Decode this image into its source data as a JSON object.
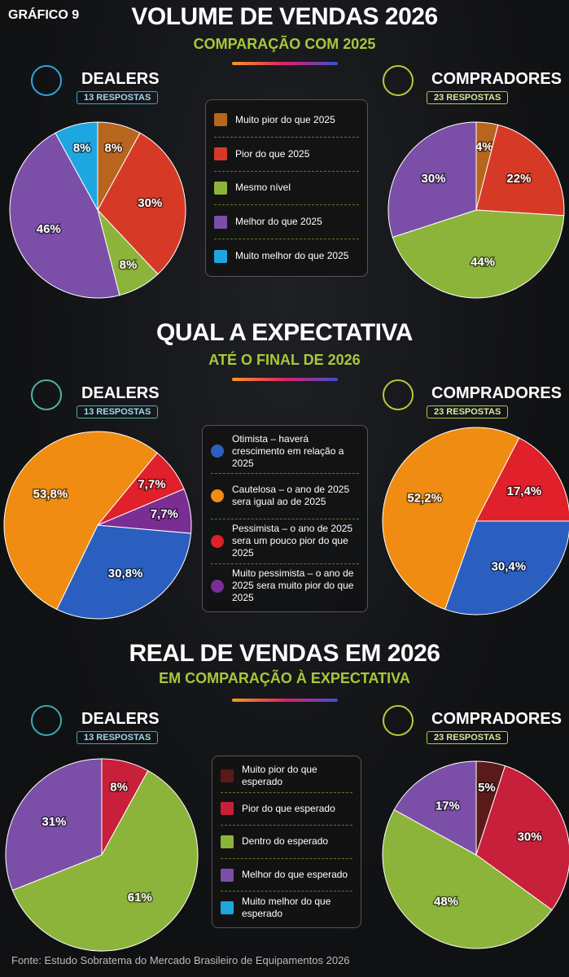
{
  "label": "GRÁFICO 9",
  "source": "Fonte: Estudo Sobratema do Mercado Brasileiro de Equipamentos 2026",
  "chart_data": [
    {
      "type": "pie",
      "title": "VOLUME DE VENDAS 2026",
      "subtitle": "COMPARAÇÃO COM 2025",
      "categories": [
        "Muito pior do que 2025",
        "Pior do que 2025",
        "Mesmo nível",
        "Melhor do que 2025",
        "Muito melhor do que 2025"
      ],
      "colors": [
        "#b8651e",
        "#d63a26",
        "#8cb43a",
        "#7b4fa8",
        "#1ea6e0"
      ],
      "series": [
        {
          "name": "DEALERS",
          "responses": "13 RESPOSTAS",
          "values": [
            8,
            30,
            8,
            46,
            8
          ],
          "value_labels": [
            "8%",
            "30%",
            "8%",
            "46%",
            "8%"
          ]
        },
        {
          "name": "COMPRADORES",
          "responses": "23 RESPOSTAS",
          "values": [
            4,
            22,
            44,
            30,
            0
          ],
          "value_labels": [
            "4%",
            "22%",
            "44%",
            "30%",
            null
          ]
        }
      ]
    },
    {
      "type": "pie",
      "title": "QUAL A EXPECTATIVA",
      "subtitle": "ATÉ O FINAL DE 2026",
      "categories": [
        "Otimista – haverá crescimento em relação a 2025",
        "Cautelosa – o ano de 2025 sera igual ao de 2025",
        "Pessimista – o ano de 2025 sera um pouco pior do que 2025",
        "Muito pessimista – o ano de 2025 sera muito pior do que 2025"
      ],
      "colors": [
        "#2a5fbf",
        "#f08c12",
        "#e0202a",
        "#7a2e94"
      ],
      "series": [
        {
          "name": "DEALERS",
          "responses": "13 RESPOSTAS",
          "values": [
            30.8,
            53.8,
            7.7,
            7.7
          ],
          "value_labels": [
            "30,8%",
            "53,8%",
            "7,7%",
            "7,7%"
          ]
        },
        {
          "name": "COMPRADORES",
          "responses": "23 RESPOSTAS",
          "values": [
            30.4,
            52.2,
            17.4,
            0
          ],
          "value_labels": [
            "30,4%",
            "52,2%",
            "17,4%",
            null
          ]
        }
      ]
    },
    {
      "type": "pie",
      "title": "REAL DE VENDAS EM 2026",
      "subtitle": "EM COMPARAÇÃO À EXPECTATIVA",
      "categories": [
        "Muito pior do que esperado",
        "Pior do que esperado",
        "Dentro do esperado",
        "Melhor do que esperado",
        "Muito melhor do que esperado"
      ],
      "colors": [
        "#5a1a1a",
        "#c8203a",
        "#8cb43a",
        "#7b4fa8",
        "#1ea6e0"
      ],
      "series": [
        {
          "name": "DEALERS",
          "responses": "13 RESPOSTAS",
          "values": [
            0,
            8,
            61,
            31,
            0
          ],
          "value_labels": [
            null,
            "8%",
            "61%",
            "31%",
            null
          ]
        },
        {
          "name": "COMPRADORES",
          "responses": "23 RESPOSTAS",
          "values": [
            5,
            30,
            48,
            17,
            0
          ],
          "value_labels": [
            "5%",
            "30%",
            "48%",
            "17%",
            null
          ]
        }
      ]
    }
  ]
}
